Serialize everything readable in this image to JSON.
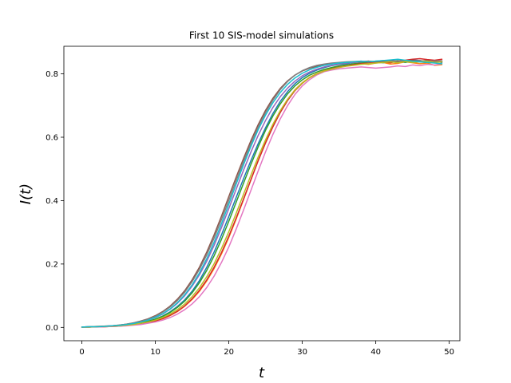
{
  "chart_data": {
    "type": "line",
    "title": "First 10 SIS-model simulations",
    "xlabel": "t",
    "ylabel": "I(t)",
    "xlim": [
      -2.45,
      51.45
    ],
    "ylim": [
      -0.042,
      0.887
    ],
    "xticks": [
      0,
      10,
      20,
      30,
      40,
      50
    ],
    "yticks": [
      0.0,
      0.2,
      0.4,
      0.6,
      0.8
    ],
    "grid": false,
    "legend": "none",
    "x": [
      0,
      1,
      2,
      3,
      4,
      5,
      6,
      7,
      8,
      9,
      10,
      11,
      12,
      13,
      14,
      15,
      16,
      17,
      18,
      19,
      20,
      21,
      22,
      23,
      24,
      25,
      26,
      27,
      28,
      29,
      30,
      31,
      32,
      33,
      34,
      35,
      36,
      37,
      38,
      39,
      40,
      41,
      42,
      43,
      44,
      45,
      46,
      47,
      48,
      49
    ],
    "series": [
      {
        "color": "#1f77b4",
        "values": [
          0.001,
          0.001,
          0.002,
          0.003,
          0.004,
          0.005,
          0.007,
          0.01,
          0.014,
          0.019,
          0.026,
          0.036,
          0.049,
          0.066,
          0.087,
          0.114,
          0.148,
          0.19,
          0.238,
          0.292,
          0.35,
          0.41,
          0.469,
          0.526,
          0.58,
          0.63,
          0.675,
          0.713,
          0.744,
          0.769,
          0.788,
          0.802,
          0.812,
          0.82,
          0.826,
          0.83,
          0.832,
          0.836,
          0.838,
          0.836,
          0.84,
          0.838,
          0.842,
          0.836,
          0.84,
          0.844,
          0.842,
          0.838,
          0.84,
          0.836
        ]
      },
      {
        "color": "#ff7f0e",
        "values": [
          0.001,
          0.001,
          0.002,
          0.002,
          0.003,
          0.004,
          0.006,
          0.008,
          0.011,
          0.015,
          0.02,
          0.027,
          0.037,
          0.05,
          0.067,
          0.088,
          0.114,
          0.147,
          0.186,
          0.232,
          0.284,
          0.342,
          0.403,
          0.465,
          0.527,
          0.584,
          0.636,
          0.681,
          0.719,
          0.75,
          0.772,
          0.789,
          0.801,
          0.81,
          0.817,
          0.822,
          0.825,
          0.829,
          0.832,
          0.83,
          0.834,
          0.836,
          0.831,
          0.833,
          0.838,
          0.835,
          0.832,
          0.834,
          0.827,
          0.829
        ]
      },
      {
        "color": "#2ca02c",
        "values": [
          0.001,
          0.001,
          0.002,
          0.003,
          0.004,
          0.005,
          0.007,
          0.01,
          0.014,
          0.019,
          0.026,
          0.035,
          0.047,
          0.063,
          0.083,
          0.109,
          0.141,
          0.18,
          0.226,
          0.278,
          0.335,
          0.395,
          0.455,
          0.514,
          0.57,
          0.622,
          0.667,
          0.705,
          0.737,
          0.762,
          0.781,
          0.796,
          0.806,
          0.814,
          0.82,
          0.825,
          0.828,
          0.832,
          0.834,
          0.836,
          0.838,
          0.835,
          0.839,
          0.842,
          0.836,
          0.84,
          0.838,
          0.836,
          0.841,
          0.838
        ]
      },
      {
        "color": "#d62728",
        "values": [
          0.001,
          0.001,
          0.002,
          0.002,
          0.003,
          0.004,
          0.006,
          0.008,
          0.011,
          0.015,
          0.021,
          0.028,
          0.038,
          0.051,
          0.068,
          0.09,
          0.117,
          0.15,
          0.19,
          0.236,
          0.288,
          0.345,
          0.405,
          0.466,
          0.526,
          0.582,
          0.633,
          0.678,
          0.716,
          0.747,
          0.77,
          0.788,
          0.8,
          0.809,
          0.816,
          0.821,
          0.825,
          0.829,
          0.832,
          0.834,
          0.836,
          0.838,
          0.835,
          0.84,
          0.843,
          0.846,
          0.848,
          0.845,
          0.843,
          0.846
        ]
      },
      {
        "color": "#9467bd",
        "values": [
          0.001,
          0.002,
          0.002,
          0.003,
          0.005,
          0.006,
          0.009,
          0.012,
          0.017,
          0.023,
          0.031,
          0.042,
          0.057,
          0.076,
          0.1,
          0.13,
          0.166,
          0.209,
          0.259,
          0.315,
          0.375,
          0.436,
          0.496,
          0.553,
          0.606,
          0.653,
          0.694,
          0.728,
          0.755,
          0.777,
          0.794,
          0.806,
          0.815,
          0.822,
          0.827,
          0.831,
          0.834,
          0.836,
          0.838,
          0.84,
          0.838,
          0.841,
          0.843,
          0.839,
          0.842,
          0.838,
          0.84,
          0.842,
          0.838,
          0.841
        ]
      },
      {
        "color": "#8c564b",
        "values": [
          0.001,
          0.002,
          0.003,
          0.004,
          0.005,
          0.007,
          0.01,
          0.014,
          0.02,
          0.027,
          0.037,
          0.05,
          0.067,
          0.089,
          0.116,
          0.15,
          0.19,
          0.238,
          0.292,
          0.351,
          0.413,
          0.474,
          0.533,
          0.589,
          0.64,
          0.685,
          0.723,
          0.754,
          0.778,
          0.796,
          0.809,
          0.818,
          0.824,
          0.829,
          0.832,
          0.834,
          0.836,
          0.838,
          0.839,
          0.84,
          0.838,
          0.84,
          0.842,
          0.839,
          0.841,
          0.843,
          0.84,
          0.842,
          0.839,
          0.841
        ]
      },
      {
        "color": "#e377c2",
        "values": [
          0.001,
          0.001,
          0.001,
          0.002,
          0.003,
          0.004,
          0.005,
          0.007,
          0.009,
          0.013,
          0.017,
          0.023,
          0.031,
          0.042,
          0.056,
          0.074,
          0.097,
          0.126,
          0.162,
          0.205,
          0.254,
          0.31,
          0.37,
          0.432,
          0.494,
          0.554,
          0.609,
          0.658,
          0.7,
          0.735,
          0.762,
          0.782,
          0.797,
          0.807,
          0.812,
          0.816,
          0.818,
          0.82,
          0.822,
          0.82,
          0.818,
          0.82,
          0.822,
          0.825,
          0.823,
          0.828,
          0.826,
          0.83,
          0.828,
          0.832
        ]
      },
      {
        "color": "#7f7f7f",
        "values": [
          0.001,
          0.002,
          0.003,
          0.004,
          0.005,
          0.007,
          0.01,
          0.014,
          0.019,
          0.026,
          0.035,
          0.048,
          0.064,
          0.085,
          0.111,
          0.144,
          0.183,
          0.229,
          0.282,
          0.34,
          0.401,
          0.463,
          0.523,
          0.58,
          0.632,
          0.678,
          0.717,
          0.75,
          0.776,
          0.796,
          0.81,
          0.82,
          0.827,
          0.831,
          0.834,
          0.836,
          0.838,
          0.839,
          0.84,
          0.838,
          0.84,
          0.842,
          0.839,
          0.841,
          0.838,
          0.84,
          0.842,
          0.839,
          0.841,
          0.84
        ]
      },
      {
        "color": "#bcbd22",
        "values": [
          0.001,
          0.001,
          0.002,
          0.003,
          0.004,
          0.005,
          0.007,
          0.009,
          0.013,
          0.017,
          0.023,
          0.031,
          0.042,
          0.056,
          0.074,
          0.097,
          0.125,
          0.16,
          0.201,
          0.249,
          0.302,
          0.36,
          0.42,
          0.48,
          0.538,
          0.592,
          0.641,
          0.684,
          0.72,
          0.749,
          0.771,
          0.788,
          0.8,
          0.809,
          0.815,
          0.82,
          0.824,
          0.827,
          0.83,
          0.832,
          0.834,
          0.836,
          0.838,
          0.835,
          0.839,
          0.836,
          0.838,
          0.84,
          0.836,
          0.838
        ]
      },
      {
        "color": "#17becf",
        "values": [
          0.001,
          0.002,
          0.002,
          0.003,
          0.005,
          0.006,
          0.009,
          0.012,
          0.017,
          0.023,
          0.032,
          0.043,
          0.058,
          0.078,
          0.103,
          0.134,
          0.172,
          0.217,
          0.269,
          0.327,
          0.389,
          0.452,
          0.513,
          0.571,
          0.624,
          0.67,
          0.709,
          0.741,
          0.767,
          0.787,
          0.802,
          0.813,
          0.821,
          0.827,
          0.831,
          0.834,
          0.836,
          0.838,
          0.84,
          0.838,
          0.84,
          0.842,
          0.844,
          0.846,
          0.843,
          0.84,
          0.838,
          0.836,
          0.834,
          0.832
        ]
      }
    ]
  }
}
